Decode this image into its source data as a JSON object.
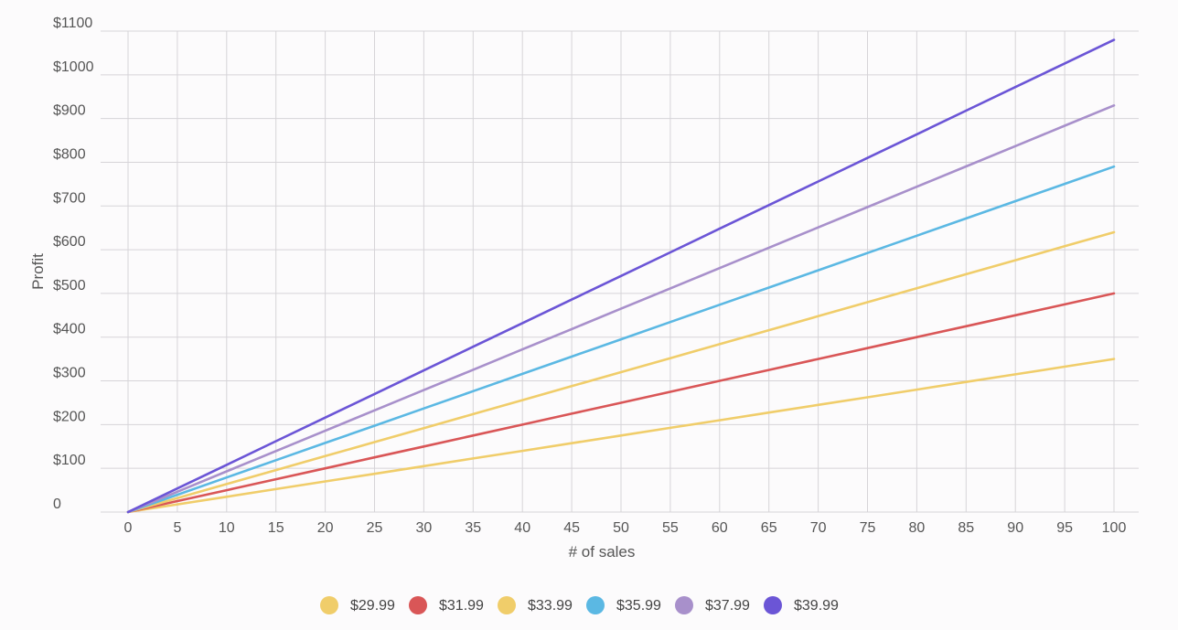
{
  "chart_data": {
    "type": "line",
    "xlabel": "# of sales",
    "ylabel": "Profit",
    "x": [
      0,
      5,
      10,
      15,
      20,
      25,
      30,
      35,
      40,
      45,
      50,
      55,
      60,
      65,
      70,
      75,
      80,
      85,
      90,
      95,
      100
    ],
    "xlim": [
      0,
      100
    ],
    "ylim": [
      0,
      1100
    ],
    "x_ticks": [
      0,
      5,
      10,
      15,
      20,
      25,
      30,
      35,
      40,
      45,
      50,
      55,
      60,
      65,
      70,
      75,
      80,
      85,
      90,
      95,
      100
    ],
    "y_ticks": [
      0,
      100,
      200,
      300,
      400,
      500,
      600,
      700,
      800,
      900,
      1000,
      1100
    ],
    "y_tick_labels": [
      "0",
      "$100",
      "$200",
      "$300",
      "$400",
      "$500",
      "$600",
      "$700",
      "$800",
      "$900",
      "$1000",
      "$1100"
    ],
    "grid": true,
    "legend_position": "bottom",
    "series": [
      {
        "name": "$29.99",
        "color": "#f0cd6a",
        "values": [
          0,
          17.5,
          35,
          52.5,
          70,
          87.5,
          105,
          122.5,
          140,
          157.5,
          175,
          192.5,
          210,
          227.5,
          245,
          262.5,
          280,
          297.5,
          315,
          332.5,
          350
        ]
      },
      {
        "name": "$31.99",
        "color": "#d95657",
        "values": [
          0,
          25,
          50,
          75,
          100,
          125,
          150,
          175,
          200,
          225,
          250,
          275,
          300,
          325,
          350,
          375,
          400,
          425,
          450,
          475,
          500
        ]
      },
      {
        "name": "$33.99",
        "color": "#f0cd6a",
        "values": [
          0,
          32,
          64,
          96,
          128,
          160,
          192,
          224,
          256,
          288,
          320,
          352,
          384,
          416,
          448,
          480,
          512,
          544,
          576,
          608,
          640
        ]
      },
      {
        "name": "$35.99",
        "color": "#5bb8e3",
        "values": [
          0,
          39.5,
          79,
          118.5,
          158,
          197.5,
          237,
          276.5,
          316,
          355.5,
          395,
          434.5,
          474,
          513.5,
          553,
          592.5,
          632,
          671.5,
          711,
          750.5,
          790
        ]
      },
      {
        "name": "$37.99",
        "color": "#a890cb",
        "values": [
          0,
          46.5,
          93,
          139.5,
          186,
          232.5,
          279,
          325.5,
          372,
          418.5,
          465,
          511.5,
          558,
          604.5,
          651,
          697.5,
          744,
          790.5,
          837,
          883.5,
          930
        ]
      },
      {
        "name": "$39.99",
        "color": "#6b55d6",
        "values": [
          0,
          54,
          108,
          162,
          216,
          270,
          324,
          378,
          432,
          486,
          540,
          594,
          648,
          702,
          756,
          810,
          864,
          918,
          972,
          1026,
          1080
        ]
      }
    ]
  }
}
